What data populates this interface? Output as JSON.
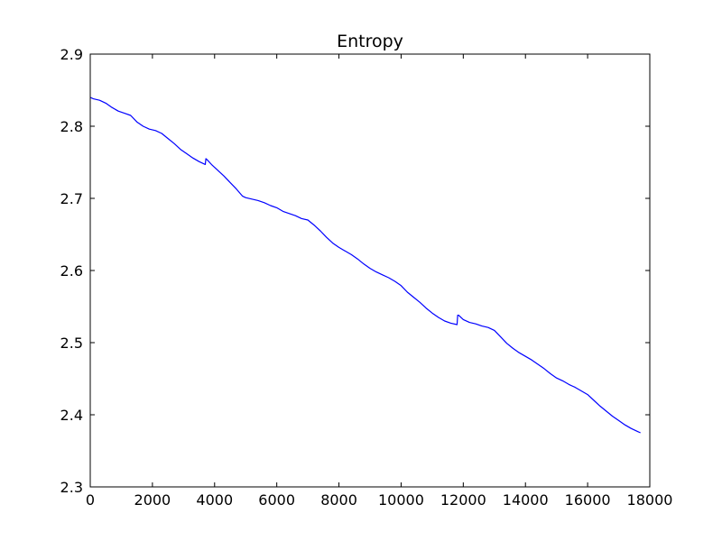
{
  "chart_data": {
    "type": "line",
    "title": "Entropy",
    "xlabel": "",
    "ylabel": "",
    "xlim": [
      0,
      18000
    ],
    "ylim": [
      2.3,
      2.9
    ],
    "grid": false,
    "legend": "none",
    "x_ticks": [
      0,
      2000,
      4000,
      6000,
      8000,
      10000,
      12000,
      14000,
      16000,
      18000
    ],
    "x_tick_labels": [
      "0",
      "2000",
      "4000",
      "6000",
      "8000",
      "10000",
      "12000",
      "14000",
      "16000",
      "18000"
    ],
    "y_ticks": [
      2.3,
      2.4,
      2.5,
      2.6,
      2.7,
      2.8,
      2.9
    ],
    "y_tick_labels": [
      "2.3",
      "2.4",
      "2.5",
      "2.6",
      "2.7",
      "2.8",
      "2.9"
    ],
    "series": [
      {
        "color": "#0000ff",
        "x": [
          0,
          100,
          300,
          500,
          700,
          900,
          1100,
          1300,
          1500,
          1700,
          1900,
          2100,
          2300,
          2500,
          2700,
          2900,
          3100,
          3300,
          3500,
          3700,
          3720,
          3750,
          3900,
          4100,
          4300,
          4500,
          4700,
          4900,
          5000,
          5200,
          5400,
          5600,
          5800,
          6000,
          6200,
          6400,
          6600,
          6800,
          7000,
          7200,
          7400,
          7600,
          7800,
          8000,
          8200,
          8400,
          8600,
          8800,
          9000,
          9200,
          9400,
          9600,
          9800,
          10000,
          10200,
          10400,
          10600,
          10800,
          11000,
          11200,
          11400,
          11600,
          11800,
          11820,
          11850,
          12000,
          12200,
          12400,
          12600,
          12800,
          13000,
          13200,
          13400,
          13600,
          13800,
          14000,
          14200,
          14400,
          14600,
          14800,
          15000,
          15200,
          15400,
          15600,
          15800,
          16000,
          16200,
          16400,
          16600,
          16800,
          17000,
          17200,
          17400,
          17600,
          17700
        ],
        "y": [
          2.84,
          2.838,
          2.836,
          2.832,
          2.826,
          2.821,
          2.818,
          2.815,
          2.806,
          2.8,
          2.796,
          2.794,
          2.79,
          2.783,
          2.776,
          2.768,
          2.762,
          2.756,
          2.751,
          2.747,
          2.755,
          2.754,
          2.747,
          2.739,
          2.731,
          2.722,
          2.713,
          2.703,
          2.701,
          2.699,
          2.697,
          2.694,
          2.69,
          2.687,
          2.682,
          2.679,
          2.676,
          2.672,
          2.67,
          2.663,
          2.655,
          2.646,
          2.638,
          2.632,
          2.627,
          2.622,
          2.616,
          2.609,
          2.603,
          2.598,
          2.594,
          2.59,
          2.585,
          2.579,
          2.57,
          2.563,
          2.556,
          2.548,
          2.541,
          2.535,
          2.53,
          2.527,
          2.525,
          2.538,
          2.538,
          2.532,
          2.528,
          2.526,
          2.523,
          2.521,
          2.517,
          2.508,
          2.499,
          2.492,
          2.486,
          2.481,
          2.476,
          2.47,
          2.464,
          2.457,
          2.451,
          2.447,
          2.442,
          2.438,
          2.433,
          2.428,
          2.42,
          2.412,
          2.405,
          2.398,
          2.392,
          2.386,
          2.381,
          2.377,
          2.375
        ]
      }
    ]
  }
}
